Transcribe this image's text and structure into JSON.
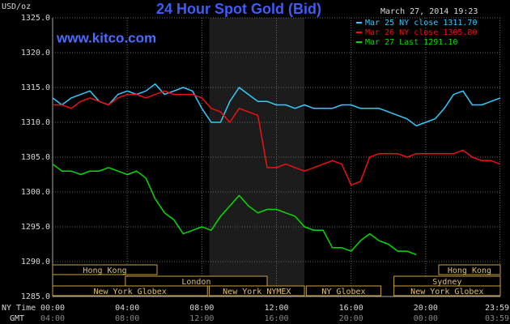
{
  "chart_data": {
    "type": "line",
    "title": "24 Hour Spot Gold (Bid)",
    "timestamp": "March 27, 2014 19:23",
    "y_label": "USD/oz",
    "watermark": "www.kitco.com",
    "x_row_label": "NY Time",
    "x2_row_label": "GMT",
    "x": [
      0,
      0.5,
      1,
      1.5,
      2,
      2.5,
      3,
      3.5,
      4,
      4.5,
      5,
      5.5,
      6,
      6.5,
      7,
      7.5,
      8,
      8.5,
      9,
      9.5,
      10,
      10.5,
      11,
      11.5,
      12,
      12.5,
      13,
      13.5,
      14,
      14.5,
      15,
      15.5,
      16,
      16.5,
      17,
      17.5,
      18,
      18.5,
      19,
      19.5,
      20,
      20.5,
      21,
      21.5,
      22,
      22.5,
      23,
      23.5,
      24
    ],
    "series": [
      {
        "name": "Mar 25 NY close 1311.70",
        "color": "#33ccff",
        "values": [
          1313.5,
          1312.5,
          1313.5,
          1314,
          1314.5,
          1313,
          1312.5,
          1314,
          1314.5,
          1314,
          1314.5,
          1315.5,
          1314,
          1314.5,
          1315,
          1314.5,
          1312,
          1310,
          1310,
          1313,
          1315,
          1314,
          1313,
          1313,
          1312.5,
          1312.5,
          1312,
          1312.5,
          1312,
          1312,
          1312,
          1312.5,
          1312.5,
          1312,
          1312,
          1312,
          1311.5,
          1311,
          1310.5,
          1309.5,
          1310,
          1310.5,
          1312,
          1314,
          1314.5,
          1312.5,
          1312.5,
          1313,
          1313.5
        ]
      },
      {
        "name": "Mar 26 NY close 1305.80",
        "color": "#ee1111",
        "values": [
          1312.5,
          1312.5,
          1312,
          1313,
          1313.5,
          1313,
          1312.5,
          1313.5,
          1314,
          1314,
          1313.5,
          1314,
          1314.5,
          1314,
          1314,
          1314,
          1313.5,
          1312,
          1311.5,
          1310,
          1312,
          1311.5,
          1311,
          1303.5,
          1303.5,
          1304,
          1303.5,
          1303,
          1303.5,
          1304,
          1304.5,
          1304,
          1301,
          1301.5,
          1305,
          1305.5,
          1305.5,
          1305.5,
          1305,
          1305.5,
          1305.5,
          1305.5,
          1305.5,
          1305.5,
          1306,
          1305,
          1304.5,
          1304.5,
          1304
        ]
      },
      {
        "name": "Mar 27 Last 1291.10",
        "color": "#00dd00",
        "values": [
          1304,
          1303,
          1303,
          1302.5,
          1303,
          1303,
          1303.5,
          1303,
          1302.5,
          1303,
          1302,
          1299,
          1297,
          1296,
          1294,
          1294.5,
          1295,
          1294.5,
          1296.5,
          1298,
          1299.5,
          1298,
          1297,
          1297.5,
          1297.5,
          1297,
          1296.5,
          1295,
          1294.5,
          1294.5,
          1292,
          1292,
          1291.5,
          1293,
          1294,
          1293,
          1292.5,
          1291.5,
          1291.5,
          1291,
          null,
          null,
          null,
          null,
          null,
          null,
          null,
          null,
          null
        ]
      }
    ],
    "xlim": [
      0,
      24
    ],
    "ylim": [
      1285,
      1325
    ],
    "yticks": [
      {
        "value": 1285,
        "label": "1285.0"
      },
      {
        "value": 1290,
        "label": "1290.0"
      },
      {
        "value": 1295,
        "label": "1295.0"
      },
      {
        "value": 1300,
        "label": "1300.0"
      },
      {
        "value": 1305,
        "label": "1305.0"
      },
      {
        "value": 1310,
        "label": "1310.0"
      },
      {
        "value": 1315,
        "label": "1315.0"
      },
      {
        "value": 1320,
        "label": "1320.0"
      },
      {
        "value": 1325,
        "label": "1325.0"
      }
    ],
    "xticks": [
      {
        "value": 0,
        "label": "00:00"
      },
      {
        "value": 4,
        "label": "04:00"
      },
      {
        "value": 8,
        "label": "08:00"
      },
      {
        "value": 12,
        "label": "12:00"
      },
      {
        "value": 16,
        "label": "16:00"
      },
      {
        "value": 20,
        "label": "20:00"
      },
      {
        "value": 23.98,
        "label": "23:59"
      }
    ],
    "x2ticks": [
      {
        "value": 0,
        "label": "04:00"
      },
      {
        "value": 4,
        "label": "08:00"
      },
      {
        "value": 8,
        "label": "12:00"
      },
      {
        "value": 12,
        "label": "16:00"
      },
      {
        "value": 16,
        "label": "20:00"
      },
      {
        "value": 20,
        "label": "00:00"
      },
      {
        "value": 23.98,
        "label": "03:59"
      }
    ],
    "grid": true,
    "sessions": [
      [
        {
          "label": "Hong Kong",
          "start": 0,
          "end": 5.6
        },
        {
          "label": "Hong Kong",
          "start": 20.7,
          "end": 24
        }
      ],
      [
        {
          "label": "London",
          "start": 3.9,
          "end": 11.5
        },
        {
          "label": "Sydney",
          "start": 18.3,
          "end": 24
        }
      ],
      [
        {
          "label": "New York Globex",
          "start": 0,
          "end": 8.3
        },
        {
          "label": "New York NYMEX",
          "start": 8.4,
          "end": 13.5,
          "shaded": true
        },
        {
          "label": "NY Globex",
          "start": 13.6,
          "end": 17.6
        },
        {
          "label": "New York Globex",
          "start": 18.3,
          "end": 24
        }
      ]
    ]
  }
}
